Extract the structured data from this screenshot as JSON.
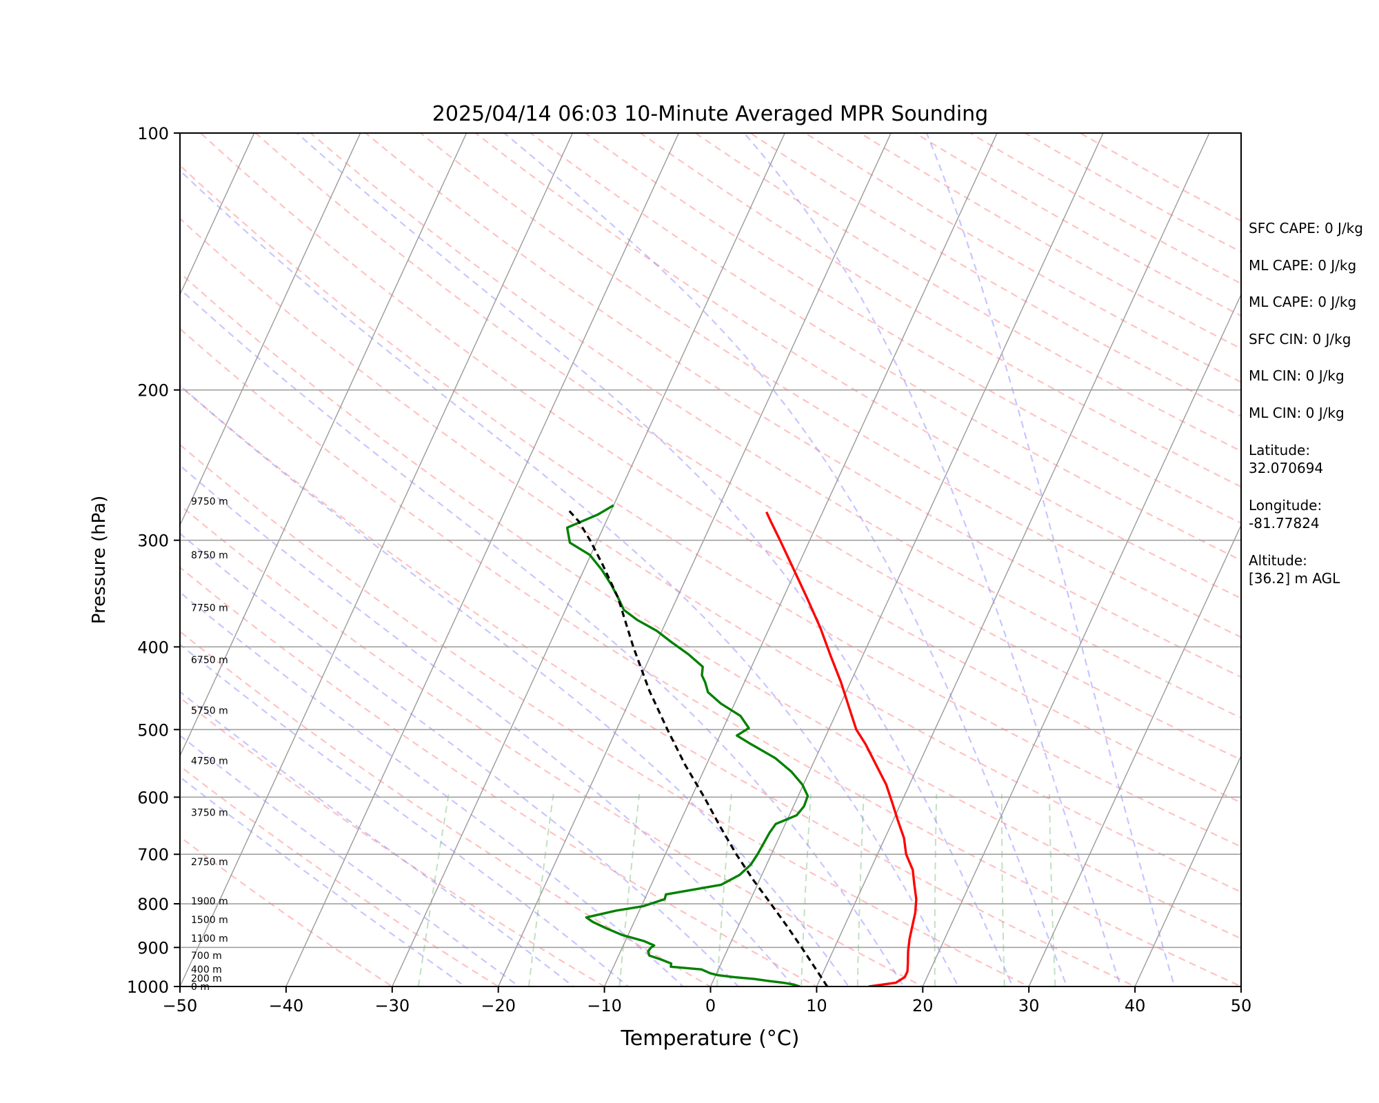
{
  "chart_data": {
    "type": "line",
    "title": "2025/04/14 06:03 10-Minute Averaged MPR Sounding",
    "xlabel": "Temperature (°C)",
    "ylabel": "Pressure (hPa)",
    "xlim": [
      -50,
      50
    ],
    "ylim": [
      1000,
      100
    ],
    "y_scale": "log",
    "x_ticks": [
      "−50",
      "−40",
      "−30",
      "−20",
      "−10",
      "0",
      "10",
      "20",
      "30",
      "40",
      "50"
    ],
    "y_ticks": [
      {
        "p": 100,
        "label": "100"
      },
      {
        "p": 200,
        "label": "200"
      },
      {
        "p": 300,
        "label": "300"
      },
      {
        "p": 400,
        "label": "400"
      },
      {
        "p": 500,
        "label": "500"
      },
      {
        "p": 600,
        "label": "600"
      },
      {
        "p": 700,
        "label": "700"
      },
      {
        "p": 800,
        "label": "800"
      },
      {
        "p": 900,
        "label": "900"
      },
      {
        "p": 1000,
        "label": "1000"
      }
    ],
    "height_labels": [
      {
        "p": 1000,
        "label": "0 m"
      },
      {
        "p": 978,
        "label": "200 m"
      },
      {
        "p": 955,
        "label": "400 m"
      },
      {
        "p": 920,
        "label": "700 m"
      },
      {
        "p": 878,
        "label": "1100 m"
      },
      {
        "p": 835,
        "label": "1500 m"
      },
      {
        "p": 794,
        "label": "1900 m"
      },
      {
        "p": 714,
        "label": "2750 m"
      },
      {
        "p": 625,
        "label": "3750 m"
      },
      {
        "p": 544,
        "label": "4750 m"
      },
      {
        "p": 475,
        "label": "5750 m"
      },
      {
        "p": 414,
        "label": "6750 m"
      },
      {
        "p": 360,
        "label": "7750 m"
      },
      {
        "p": 312,
        "label": "8750 m"
      },
      {
        "p": 270,
        "label": "9750 m"
      }
    ],
    "series": [
      {
        "key": "temperature",
        "color": "#ff0000",
        "points": [
          [
            1000,
            14.9
          ],
          [
            990,
            17.3
          ],
          [
            975,
            17.9
          ],
          [
            960,
            17.9
          ],
          [
            940,
            17.6
          ],
          [
            910,
            17.1
          ],
          [
            880,
            16.7
          ],
          [
            850,
            16.4
          ],
          [
            820,
            16.1
          ],
          [
            790,
            15.6
          ],
          [
            760,
            14.8
          ],
          [
            730,
            14.0
          ],
          [
            700,
            12.7
          ],
          [
            670,
            11.8
          ],
          [
            640,
            10.5
          ],
          [
            610,
            9.2
          ],
          [
            580,
            7.8
          ],
          [
            550,
            6.0
          ],
          [
            520,
            4.1
          ],
          [
            500,
            2.6
          ],
          [
            470,
            0.9
          ],
          [
            440,
            -0.9
          ],
          [
            410,
            -3.0
          ],
          [
            380,
            -5.2
          ],
          [
            350,
            -7.8
          ],
          [
            320,
            -10.7
          ],
          [
            300,
            -12.8
          ],
          [
            285,
            -14.5
          ],
          [
            278,
            -15.3
          ]
        ]
      },
      {
        "key": "dewpoint",
        "color": "#008000",
        "points": [
          [
            1000,
            8.4
          ],
          [
            995,
            7.8
          ],
          [
            990,
            6.7
          ],
          [
            985,
            5.2
          ],
          [
            980,
            3.8
          ],
          [
            975,
            1.8
          ],
          [
            970,
            0.2
          ],
          [
            965,
            -0.6
          ],
          [
            955,
            -1.6
          ],
          [
            948,
            -4.6
          ],
          [
            940,
            -4.7
          ],
          [
            930,
            -5.8
          ],
          [
            920,
            -7.1
          ],
          [
            910,
            -7.4
          ],
          [
            900,
            -7.3
          ],
          [
            895,
            -7.1
          ],
          [
            885,
            -8.2
          ],
          [
            870,
            -10.6
          ],
          [
            855,
            -12.3
          ],
          [
            840,
            -13.9
          ],
          [
            830,
            -14.7
          ],
          [
            815,
            -12.2
          ],
          [
            805,
            -9.8
          ],
          [
            790,
            -8.1
          ],
          [
            780,
            -8.2
          ],
          [
            760,
            -3.4
          ],
          [
            740,
            -2.1
          ],
          [
            720,
            -1.5
          ],
          [
            700,
            -1.3
          ],
          [
            680,
            -1.2
          ],
          [
            660,
            -1.1
          ],
          [
            645,
            -0.9
          ],
          [
            630,
            0.7
          ],
          [
            615,
            1.0
          ],
          [
            598,
            0.9
          ],
          [
            580,
            -0.1
          ],
          [
            560,
            -1.7
          ],
          [
            540,
            -3.8
          ],
          [
            520,
            -6.7
          ],
          [
            508,
            -8.4
          ],
          [
            498,
            -7.6
          ],
          [
            482,
            -8.9
          ],
          [
            466,
            -11.3
          ],
          [
            452,
            -13.0
          ],
          [
            440,
            -13.7
          ],
          [
            432,
            -14.3
          ],
          [
            422,
            -14.6
          ],
          [
            408,
            -16.5
          ],
          [
            395,
            -18.6
          ],
          [
            383,
            -20.5
          ],
          [
            372,
            -22.8
          ],
          [
            362,
            -24.5
          ],
          [
            350,
            -25.6
          ],
          [
            338,
            -26.8
          ],
          [
            325,
            -28.3
          ],
          [
            312,
            -30.1
          ],
          [
            302,
            -32.5
          ],
          [
            290,
            -33.4
          ],
          [
            280,
            -31.1
          ],
          [
            273,
            -30.0
          ]
        ]
      },
      {
        "key": "parcel",
        "color": "#000000",
        "points": [
          [
            1000,
            11.0
          ],
          [
            950,
            9.0
          ],
          [
            900,
            6.9
          ],
          [
            850,
            4.6
          ],
          [
            800,
            2.1
          ],
          [
            750,
            -0.6
          ],
          [
            700,
            -3.3
          ],
          [
            650,
            -6.0
          ],
          [
            600,
            -8.8
          ],
          [
            550,
            -12.0
          ],
          [
            500,
            -15.2
          ],
          [
            450,
            -18.6
          ],
          [
            400,
            -22.0
          ],
          [
            350,
            -25.6
          ],
          [
            320,
            -28.5
          ],
          [
            300,
            -30.7
          ],
          [
            285,
            -32.6
          ],
          [
            275,
            -34.3
          ]
        ]
      }
    ],
    "background_lines": [
      "dry adiabats",
      "moist adiabats",
      "mixing ratio lines",
      "isotherms",
      "isobars"
    ]
  },
  "side_panel": {
    "sfc_cape": "SFC CAPE: 0 J/kg",
    "ml_cape_1": "ML CAPE: 0 J/kg",
    "ml_cape_2": "ML CAPE: 0 J/kg",
    "sfc_cin": "SFC CIN: 0 J/kg",
    "ml_cin_1": "ML CIN: 0 J/kg",
    "ml_cin_2": "ML CIN: 0 J/kg",
    "latitude": "Latitude:\n32.070694",
    "longitude": "Longitude:\n-81.77824",
    "altitude": "Altitude:\n[36.2] m AGL"
  }
}
